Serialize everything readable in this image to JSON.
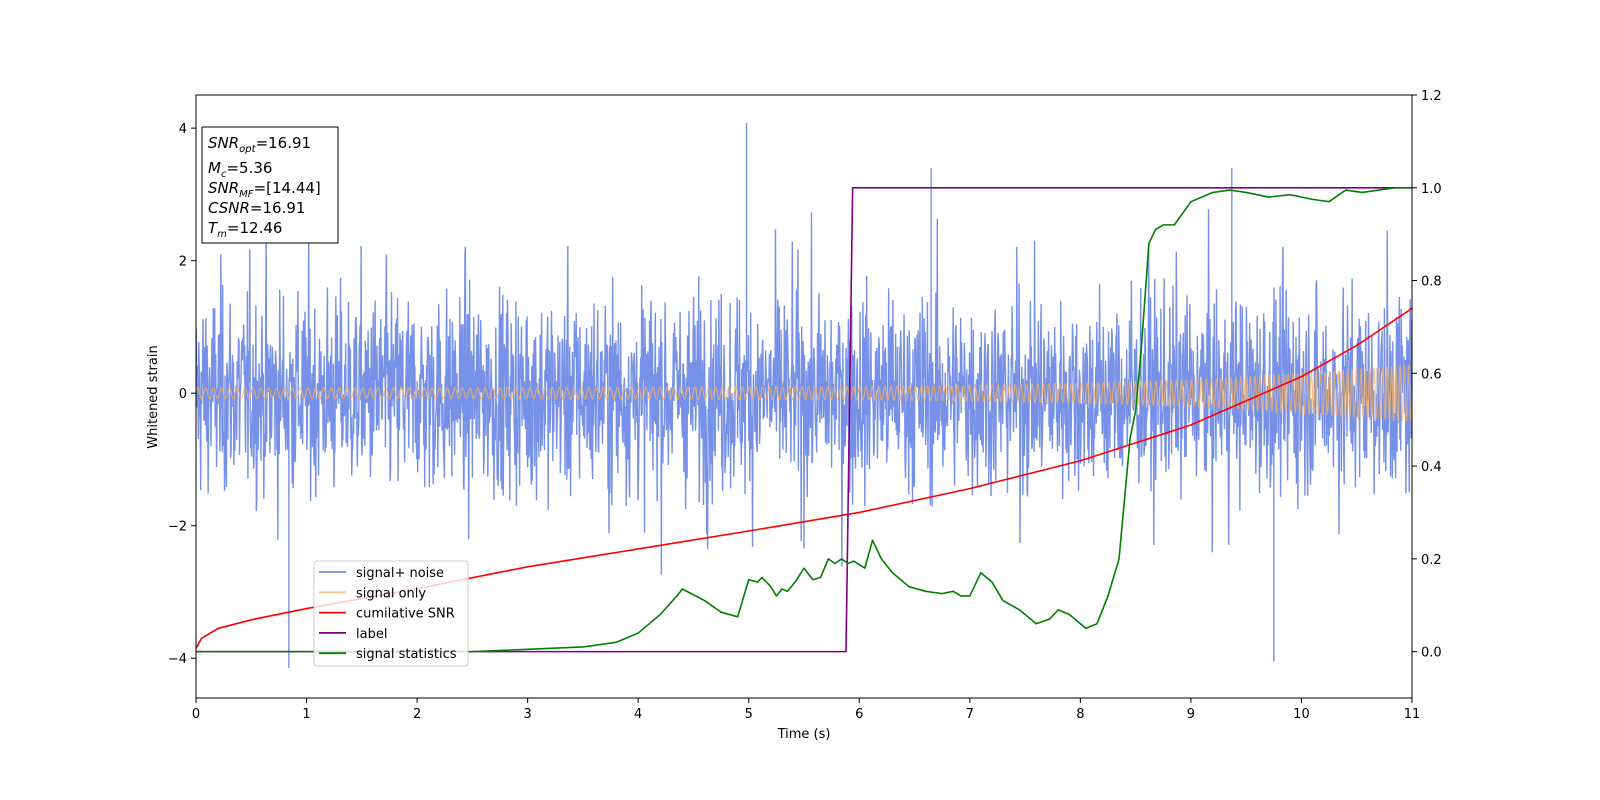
{
  "chart_data": {
    "type": "line",
    "xlabel": "Time (s)",
    "ylabel_left": "Whitened strain",
    "ylabel_right": "",
    "xlim": [
      0,
      11
    ],
    "ylim_left": [
      -4.6,
      4.5
    ],
    "ylim_right": [
      -0.1,
      1.2
    ],
    "x_ticks": [
      0,
      1,
      2,
      3,
      4,
      5,
      6,
      7,
      8,
      9,
      10,
      11
    ],
    "y_left_ticks": [
      -4,
      -2,
      0,
      2,
      4
    ],
    "y_right_ticks": [
      "0.0",
      "0.2",
      "0.4",
      "0.6",
      "0.8",
      "1.0",
      "1.2"
    ],
    "grid": false,
    "legend_position": "bottom-left",
    "colors": {
      "signal_noise": "#6f8be6",
      "signal_only": "#f5b060",
      "cumulative_snr": "#ff0000",
      "label": "#800080",
      "signal_statistics": "#008000"
    },
    "annotation": {
      "lines": [
        {
          "base": "SNR",
          "sub": "opt",
          "value": "=16.91"
        },
        {
          "base": "M",
          "sub": "c",
          "value": "=5.36"
        },
        {
          "base": "SNR",
          "sub": "MF",
          "value": "=[14.44]"
        },
        {
          "base": "CSNR",
          "sub": "",
          "value": "=16.91"
        },
        {
          "base": "T",
          "sub": "m",
          "value": "=12.46"
        }
      ]
    },
    "series": [
      {
        "name": "signal+ noise",
        "axis": "left",
        "kind": "noise-band",
        "approx_range": [
          -2.5,
          2.5
        ],
        "notable_spikes": [
          {
            "x": 0.84,
            "y": -4.15
          },
          {
            "x": 4.98,
            "y": 4.08
          },
          {
            "x": 6.65,
            "y": 3.4
          },
          {
            "x": 9.37,
            "y": 3.4
          },
          {
            "x": 9.75,
            "y": -4.05
          }
        ]
      },
      {
        "name": "signal only",
        "axis": "left",
        "kind": "chirp-envelope",
        "x": [
          0,
          2,
          4,
          6,
          7,
          8,
          9,
          10,
          11
        ],
        "amplitude": [
          0.08,
          0.08,
          0.09,
          0.1,
          0.12,
          0.15,
          0.2,
          0.3,
          0.43
        ]
      },
      {
        "name": "cumilative SNR",
        "axis": "left",
        "x": [
          0,
          0.05,
          0.2,
          0.5,
          1,
          2,
          3,
          4,
          5,
          6,
          7,
          8,
          9,
          10,
          10.5,
          11
        ],
        "y": [
          -3.85,
          -3.7,
          -3.55,
          -3.42,
          -3.25,
          -2.95,
          -2.62,
          -2.35,
          -2.08,
          -1.8,
          -1.44,
          -1.02,
          -0.48,
          0.25,
          0.72,
          1.28
        ]
      },
      {
        "name": "label",
        "axis": "right",
        "x": [
          0,
          5.88,
          5.94,
          11
        ],
        "y": [
          0,
          0,
          1,
          1
        ]
      },
      {
        "name": "signal statistics",
        "axis": "right",
        "x": [
          0,
          2.5,
          3.0,
          3.5,
          3.8,
          4.0,
          4.2,
          4.35,
          4.4,
          4.48,
          4.6,
          4.75,
          4.9,
          5.0,
          5.08,
          5.12,
          5.2,
          5.25,
          5.3,
          5.35,
          5.42,
          5.5,
          5.58,
          5.65,
          5.72,
          5.78,
          5.84,
          5.9,
          5.95,
          6.05,
          6.12,
          6.2,
          6.3,
          6.45,
          6.6,
          6.75,
          6.85,
          6.92,
          7.0,
          7.1,
          7.2,
          7.3,
          7.45,
          7.6,
          7.72,
          7.8,
          7.9,
          8.05,
          8.15,
          8.25,
          8.35,
          8.45,
          8.5,
          8.55,
          8.62,
          8.68,
          8.75,
          8.85,
          9.0,
          9.2,
          9.35,
          9.5,
          9.7,
          9.9,
          10.1,
          10.25,
          10.4,
          10.55,
          10.7,
          10.85,
          11.0
        ],
        "y": [
          0,
          0,
          0.005,
          0.01,
          0.02,
          0.04,
          0.08,
          0.12,
          0.135,
          0.125,
          0.11,
          0.085,
          0.075,
          0.155,
          0.15,
          0.16,
          0.14,
          0.12,
          0.135,
          0.13,
          0.15,
          0.18,
          0.155,
          0.16,
          0.2,
          0.19,
          0.2,
          0.19,
          0.195,
          0.18,
          0.24,
          0.2,
          0.17,
          0.14,
          0.13,
          0.125,
          0.13,
          0.12,
          0.12,
          0.17,
          0.15,
          0.11,
          0.09,
          0.06,
          0.07,
          0.09,
          0.08,
          0.05,
          0.06,
          0.12,
          0.2,
          0.46,
          0.52,
          0.65,
          0.88,
          0.91,
          0.92,
          0.92,
          0.97,
          0.99,
          0.995,
          0.99,
          0.98,
          0.985,
          0.975,
          0.97,
          0.995,
          0.99,
          0.995,
          1.0,
          1.0
        ]
      }
    ]
  }
}
